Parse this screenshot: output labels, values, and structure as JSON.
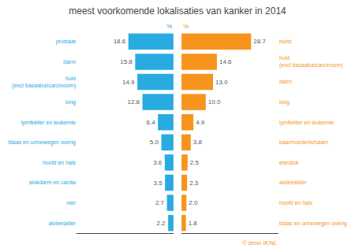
{
  "chart_data": [
    {
      "type": "bar",
      "orientation": "horizontal",
      "title": "meest voorkomende lokalisaties van kanker in 2014",
      "categories": [
        "prostaat",
        "darm",
        "huid\n(excl basaalcelcarcinoom)",
        "long",
        "lymfeklier en leukemie",
        "blaas en urinewegen overig",
        "hoofd en hals",
        "slokdarm en cardia",
        "nier",
        "alvleesklier"
      ],
      "values": [
        18.6,
        15.8,
        14.9,
        12.8,
        6.4,
        5.0,
        3.6,
        3.5,
        2.7,
        2.2
      ],
      "value_labels": [
        "18.6",
        "15.8",
        "14.9",
        "12.8",
        "6.4",
        "5.0",
        "3.6",
        "3.5",
        "2.7",
        "2.2"
      ],
      "color": "#29abe2",
      "xlim": [
        0,
        40
      ],
      "xticks": [],
      "data_labels": true,
      "tick_labels": "y",
      "grid": false,
      "annotations": [
        "%"
      ]
    },
    {
      "type": "bar",
      "orientation": "horizontal",
      "categories": [
        "borst",
        "huid\n(excl basaalcelcarcinoom)",
        "darm",
        "long",
        "lymfeklier en leukemie",
        "baarmoederlichaam",
        "eierstok",
        "alvleesklier",
        "hoofd en hals",
        "blaas en urinewegen overig"
      ],
      "values": [
        28.7,
        14.6,
        13.0,
        10.0,
        4.9,
        3.8,
        2.5,
        2.3,
        2.0,
        1.8
      ],
      "value_labels": [
        "28.7",
        "14.6",
        "13.0",
        "10.0",
        "4.9",
        "3.8",
        "2.5",
        "2.3",
        "2.0",
        "1.8"
      ],
      "color": "#f7941d",
      "xlim": [
        0,
        40
      ],
      "xticks": [],
      "data_labels": true,
      "tick_labels": "y",
      "grid": false,
      "annotations": [
        "%",
        "© bron IKNL"
      ]
    }
  ]
}
